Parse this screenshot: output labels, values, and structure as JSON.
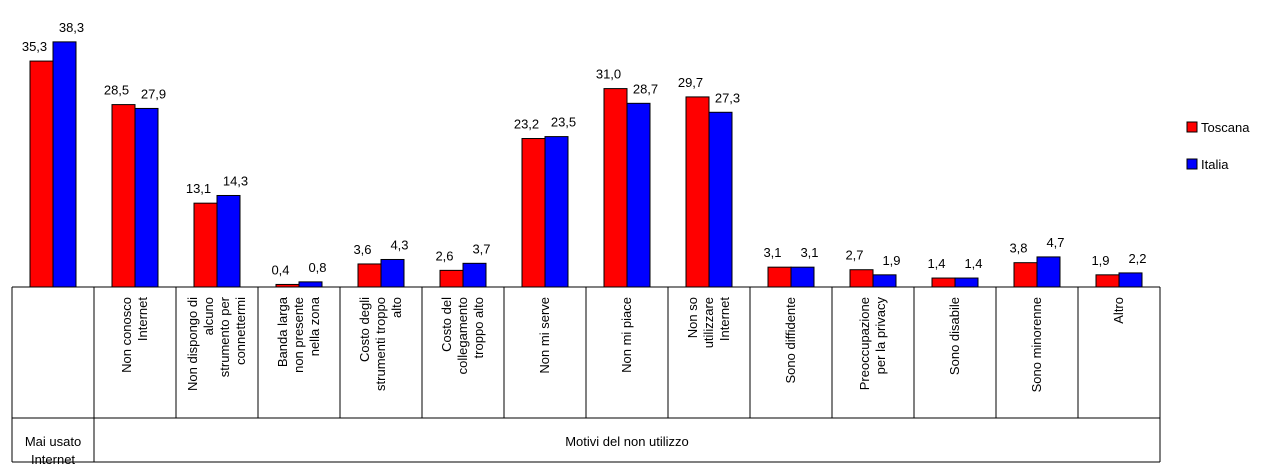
{
  "chart_data": {
    "type": "bar",
    "categories": [
      [
        "Mai usato",
        "Internet"
      ],
      [
        "Non conosco",
        "Internet"
      ],
      [
        "Non dispongo di",
        "alcuno",
        "strumento per",
        "connettermi"
      ],
      [
        "Banda larga",
        "non presente",
        "nella zona"
      ],
      [
        "Costo degli",
        "strumenti troppo",
        "alto"
      ],
      [
        "Costo del",
        "collegamento",
        "troppo alto"
      ],
      [
        "Non mi serve"
      ],
      [
        "Non mi piace"
      ],
      [
        "Non so",
        "utilizzare",
        "Internet"
      ],
      [
        "Sono diffidente"
      ],
      [
        "Preoccupazione",
        "per la privacy"
      ],
      [
        "Sono disabile"
      ],
      [
        "Sono minorenne"
      ],
      [
        "Altro"
      ]
    ],
    "series": [
      {
        "name": "Toscana",
        "color": "#ff0000",
        "values": [
          35.3,
          28.5,
          13.1,
          0.4,
          3.6,
          2.6,
          23.2,
          31.0,
          29.7,
          3.1,
          2.7,
          1.4,
          3.8,
          1.9
        ],
        "labels": [
          "35,3",
          "28,5",
          "13,1",
          "0,4",
          "3,6",
          "2,6",
          "23,2",
          "31,0",
          "29,7",
          "3,1",
          "2,7",
          "1,4",
          "3,8",
          "1,9"
        ]
      },
      {
        "name": "Italia",
        "color": "#0000ff",
        "values": [
          38.3,
          27.9,
          14.3,
          0.8,
          4.3,
          3.7,
          23.5,
          28.7,
          27.3,
          3.1,
          1.9,
          1.4,
          4.7,
          2.2
        ],
        "labels": [
          "38,3",
          "27,9",
          "14,3",
          "0,8",
          "4,3",
          "3,7",
          "23,5",
          "28,7",
          "27,3",
          "3,1",
          "1,9",
          "1,4",
          "4,7",
          "2,2"
        ]
      }
    ],
    "group_labels": [
      "Mai usato Internet",
      "Motivi del non utilizzo"
    ],
    "ylim": [
      0,
      40
    ],
    "grid": false,
    "legend_position": "right"
  }
}
